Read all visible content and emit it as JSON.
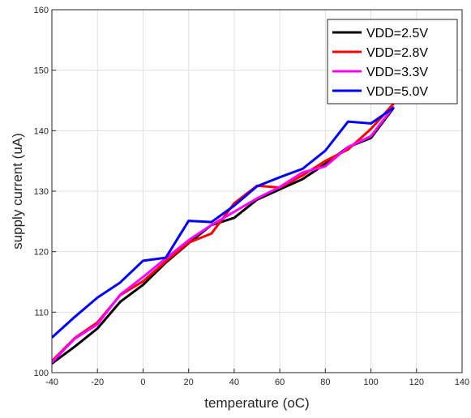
{
  "chart_data": {
    "type": "line",
    "xlabel": "temperature (oC)",
    "ylabel": "supply current (uA)",
    "xlim": [
      -40,
      140
    ],
    "ylim": [
      100,
      160
    ],
    "xticks": [
      -40,
      -20,
      0,
      20,
      40,
      60,
      80,
      100,
      120,
      140
    ],
    "yticks": [
      100,
      110,
      120,
      130,
      140,
      150,
      160
    ],
    "xtick_labels": [
      "-40",
      "-20",
      "0",
      "20",
      "40",
      "60",
      "80",
      "100",
      "120",
      "140"
    ],
    "ytick_labels": [
      "100",
      "110",
      "120",
      "130",
      "140",
      "150",
      "160"
    ],
    "grid": true,
    "legend_position": "top-right",
    "series": [
      {
        "name": "VDD=2.5V",
        "color": "#000000",
        "x": [
          -40,
          -30,
          -20,
          -10,
          0,
          10,
          20,
          30,
          40,
          50,
          60,
          70,
          80,
          90,
          100,
          110
        ],
        "y": [
          101.5,
          104.3,
          107.3,
          111.7,
          114.5,
          118.2,
          121.4,
          124.4,
          125.6,
          128.6,
          130.3,
          132.0,
          134.5,
          137.3,
          138.8,
          143.8
        ]
      },
      {
        "name": "VDD=2.8V",
        "color": "#ff0000",
        "x": [
          -40,
          -30,
          -20,
          -10,
          0,
          10,
          20,
          30,
          40,
          50,
          60,
          70,
          80,
          90,
          100,
          110
        ],
        "y": [
          101.9,
          105.7,
          108.3,
          112.8,
          115.1,
          118.4,
          121.5,
          123.0,
          128.0,
          130.9,
          130.6,
          132.6,
          135.0,
          136.9,
          140.3,
          144.5
        ]
      },
      {
        "name": "VDD=3.3V",
        "color": "#ff00ff",
        "x": [
          -40,
          -30,
          -20,
          -10,
          0,
          10,
          20,
          30,
          40,
          50,
          60,
          70,
          80,
          90,
          100,
          110
        ],
        "y": [
          101.7,
          105.6,
          108.0,
          112.9,
          115.8,
          118.9,
          121.9,
          124.4,
          126.6,
          128.8,
          130.7,
          133.1,
          134.1,
          137.3,
          139.1,
          144.0
        ]
      },
      {
        "name": "VDD=5.0V",
        "color": "#0000ff",
        "x": [
          -40,
          -30,
          -20,
          -10,
          0,
          10,
          20,
          30,
          40,
          50,
          60,
          70,
          80,
          90,
          100,
          110
        ],
        "y": [
          105.8,
          109.2,
          112.4,
          114.9,
          118.5,
          119.0,
          125.1,
          124.9,
          127.6,
          130.8,
          132.3,
          133.7,
          136.7,
          141.5,
          141.2,
          143.8
        ]
      }
    ]
  }
}
